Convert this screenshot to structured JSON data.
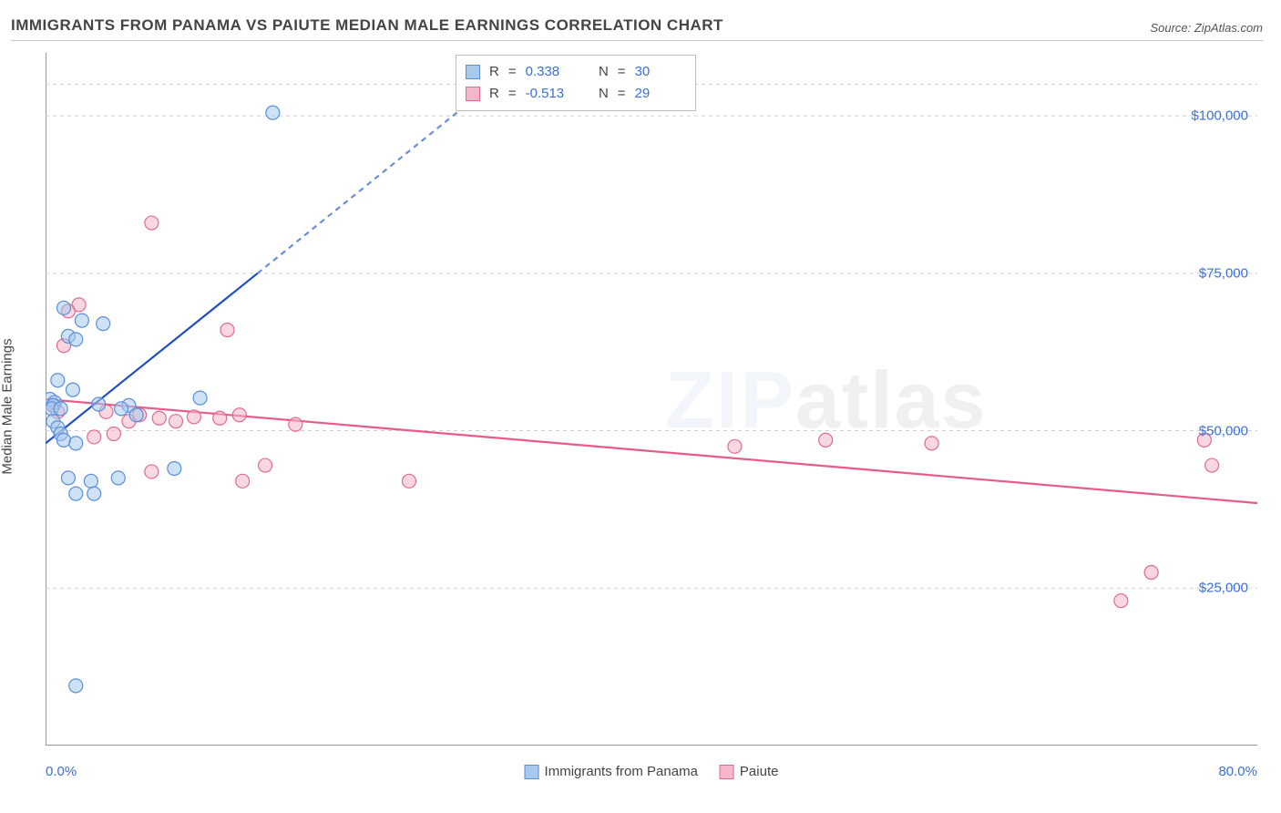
{
  "header": {
    "title": "IMMIGRANTS FROM PANAMA VS PAIUTE MEDIAN MALE EARNINGS CORRELATION CHART",
    "source_label": "Source: ZipAtlas.com"
  },
  "axes": {
    "y_label": "Median Male Earnings",
    "x_min_label": "0.0%",
    "x_max_label": "80.0%",
    "x_domain": [
      0,
      80
    ],
    "y_domain": [
      0,
      110000
    ],
    "y_ticks": [
      {
        "value": 25000,
        "label": "$25,000"
      },
      {
        "value": 50000,
        "label": "$50,000"
      },
      {
        "value": 75000,
        "label": "$75,000"
      },
      {
        "value": 100000,
        "label": "$100,000"
      }
    ],
    "y_top_gridline": 105000,
    "x_tick_positions": [
      7,
      17,
      27,
      37,
      47,
      57,
      67,
      77
    ],
    "gridline_color": "#d0d0d0",
    "axis_color": "#999999"
  },
  "series": {
    "panama": {
      "label": "Immigrants from Panama",
      "fill": "#a8c8ec",
      "fill_opacity": 0.55,
      "stroke": "#5a8fd6",
      "trend_color": "#1f4fc2",
      "trend_dash_color": "#6a8fd8",
      "trend_solid": {
        "x1": 0,
        "y1": 48000,
        "x2": 14,
        "y2": 75000
      },
      "trend_dash": {
        "x1": 14,
        "y1": 75000,
        "x2": 30.5,
        "y2": 107000
      },
      "points": [
        {
          "x": 15,
          "y": 100500
        },
        {
          "x": 1.2,
          "y": 69500
        },
        {
          "x": 2.4,
          "y": 67500
        },
        {
          "x": 3.8,
          "y": 67000
        },
        {
          "x": 1.5,
          "y": 65000
        },
        {
          "x": 2.0,
          "y": 64500
        },
        {
          "x": 0.8,
          "y": 58000
        },
        {
          "x": 1.8,
          "y": 56500
        },
        {
          "x": 0.3,
          "y": 55000
        },
        {
          "x": 0.6,
          "y": 54500
        },
        {
          "x": 0.5,
          "y": 54000
        },
        {
          "x": 0.4,
          "y": 53500
        },
        {
          "x": 1.0,
          "y": 53500
        },
        {
          "x": 3.5,
          "y": 54200
        },
        {
          "x": 5.5,
          "y": 54000
        },
        {
          "x": 10.2,
          "y": 55200
        },
        {
          "x": 0.5,
          "y": 51500
        },
        {
          "x": 0.8,
          "y": 50500
        },
        {
          "x": 1.0,
          "y": 49500
        },
        {
          "x": 1.2,
          "y": 48500
        },
        {
          "x": 2.0,
          "y": 48000
        },
        {
          "x": 5.0,
          "y": 53500
        },
        {
          "x": 6.0,
          "y": 52500
        },
        {
          "x": 8.5,
          "y": 44000
        },
        {
          "x": 1.5,
          "y": 42500
        },
        {
          "x": 3.0,
          "y": 42000
        },
        {
          "x": 4.8,
          "y": 42500
        },
        {
          "x": 2.0,
          "y": 40000
        },
        {
          "x": 3.2,
          "y": 40000
        },
        {
          "x": 2.0,
          "y": 9500
        }
      ]
    },
    "paiute": {
      "label": "Paiute",
      "fill": "#f4b6c9",
      "fill_opacity": 0.55,
      "stroke": "#e06a92",
      "trend_color": "#e85a8a",
      "trend_solid": {
        "x1": 0,
        "y1": 55000,
        "x2": 80,
        "y2": 38500
      },
      "points": [
        {
          "x": 7.0,
          "y": 83000
        },
        {
          "x": 2.2,
          "y": 70000
        },
        {
          "x": 1.5,
          "y": 69000
        },
        {
          "x": 12.0,
          "y": 66000
        },
        {
          "x": 1.2,
          "y": 63500
        },
        {
          "x": 0.5,
          "y": 54000
        },
        {
          "x": 0.8,
          "y": 53000
        },
        {
          "x": 4.0,
          "y": 53000
        },
        {
          "x": 5.5,
          "y": 51500
        },
        {
          "x": 6.2,
          "y": 52500
        },
        {
          "x": 7.5,
          "y": 52000
        },
        {
          "x": 8.6,
          "y": 51500
        },
        {
          "x": 9.8,
          "y": 52200
        },
        {
          "x": 11.5,
          "y": 52000
        },
        {
          "x": 12.8,
          "y": 52500
        },
        {
          "x": 16.5,
          "y": 51000
        },
        {
          "x": 3.2,
          "y": 49000
        },
        {
          "x": 4.5,
          "y": 49500
        },
        {
          "x": 45.5,
          "y": 47500
        },
        {
          "x": 51.5,
          "y": 48500
        },
        {
          "x": 58.5,
          "y": 48000
        },
        {
          "x": 7.0,
          "y": 43500
        },
        {
          "x": 14.5,
          "y": 44500
        },
        {
          "x": 13.0,
          "y": 42000
        },
        {
          "x": 24.0,
          "y": 42000
        },
        {
          "x": 77.0,
          "y": 44500
        },
        {
          "x": 73.0,
          "y": 27500
        },
        {
          "x": 71.0,
          "y": 23000
        },
        {
          "x": 76.5,
          "y": 48500
        }
      ]
    }
  },
  "stat_legend": {
    "rows": [
      {
        "swatch_fill": "#a8c8ec",
        "swatch_stroke": "#5a8fd6",
        "r": "0.338",
        "n": "30"
      },
      {
        "swatch_fill": "#f4b6c9",
        "swatch_stroke": "#e06a92",
        "r": "-0.513",
        "n": "29"
      }
    ]
  },
  "style": {
    "marker_radius": 7.5,
    "marker_stroke_width": 1.2,
    "trend_width": 2.2,
    "watermark_text_left": "ZIP",
    "watermark_text_right": "atlas",
    "tick_label_color": "#3a6fd8",
    "title_color": "#444444",
    "background": "#ffffff",
    "font_family": "Arial"
  }
}
